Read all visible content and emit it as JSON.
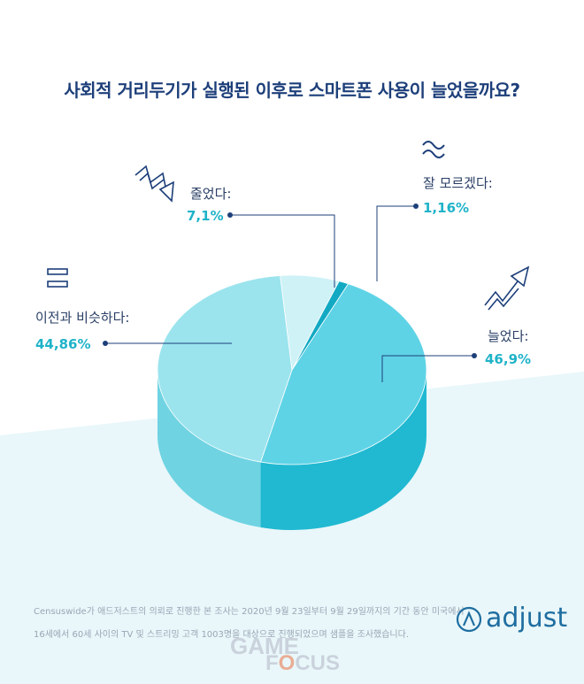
{
  "chart_data": {
    "type": "pie",
    "title": "사회적 거리두기가 실행된 이후로 스마트폰 사용이 늘었을까요?",
    "slices": [
      {
        "name": "늘었다:",
        "value_label": "46,9%",
        "value": 46.9,
        "color": "#5fd3e6",
        "side_color": "#20b9d1"
      },
      {
        "name": "이전과 비슷하다:",
        "value_label": "44,86%",
        "value": 44.86,
        "color": "#9be4ee",
        "side_color": "#6fd3e2"
      },
      {
        "name": "줄었다:",
        "value_label": "7,1%",
        "value": 7.1,
        "color": "#cff2f7",
        "side_color": "#a8e4ee"
      },
      {
        "name": "잘 모르겠다:",
        "value_label": "1,16%",
        "value": 1.16,
        "color": "#12a9c3",
        "side_color": "#0e8fa6"
      }
    ]
  },
  "footer": {
    "line1": "Censuswide가 애드저스트의 의뢰로 진행한 본 조사는 2020년 9월 23일부터 9월 29일까지의 기간 동안 미국에서",
    "line2": "16세에서 60세 사이의 TV 및 스트리밍 고객 1003명을 대상으로 진행되었으며 샘플을 조사했습니다."
  },
  "logo": {
    "text": "adjust"
  },
  "watermark": {
    "line1": "GAME",
    "line2a": "F",
    "line2b": "O",
    "line2c": "CUS"
  },
  "colors": {
    "title": "#1d3f7a",
    "accent": "#1fb3c9",
    "background_band": "#e3f5f9"
  }
}
